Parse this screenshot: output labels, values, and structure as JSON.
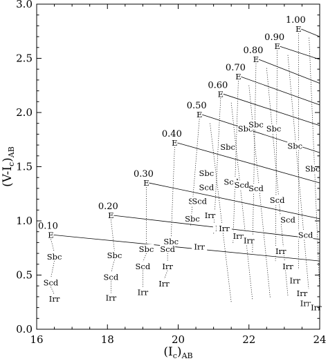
{
  "chart_data": {
    "type": "scatter",
    "title": "",
    "xlabel": "(I_c)_AB",
    "ylabel": "(V-I_c)_AB",
    "xlim": [
      16,
      24
    ],
    "ylim": [
      0.0,
      3.0
    ],
    "x_ticks": [
      "16",
      "18",
      "20",
      "22",
      "24"
    ],
    "y_ticks": [
      "0.0",
      "0.5",
      "1.0",
      "1.5",
      "2.0",
      "2.5",
      "3.0"
    ],
    "grid": false,
    "redshifts": [
      "0.10",
      "0.20",
      "0.30",
      "0.40",
      "0.50",
      "0.60",
      "0.70",
      "0.80",
      "0.90",
      "1.00"
    ],
    "e_tracks": [
      {
        "z": "0.10",
        "start": [
          16.4,
          0.87
        ],
        "end": [
          24.0,
          0.63
        ]
      },
      {
        "z": "0.20",
        "start": [
          18.1,
          1.05
        ],
        "end": [
          24.0,
          0.83
        ]
      },
      {
        "z": "0.30",
        "start": [
          19.1,
          1.35
        ],
        "end": [
          24.0,
          1.02
        ]
      },
      {
        "z": "0.40",
        "start": [
          19.9,
          1.72
        ],
        "end": [
          24.0,
          1.35
        ]
      },
      {
        "z": "0.50",
        "start": [
          20.6,
          1.98
        ],
        "end": [
          24.0,
          1.63
        ]
      },
      {
        "z": "0.60",
        "start": [
          21.2,
          2.17
        ],
        "end": [
          24.0,
          1.88
        ]
      },
      {
        "z": "0.70",
        "start": [
          21.7,
          2.33
        ],
        "end": [
          24.0,
          2.07
        ]
      },
      {
        "z": "0.80",
        "start": [
          22.2,
          2.49
        ],
        "end": [
          24.0,
          2.27
        ]
      },
      {
        "z": "0.90",
        "start": [
          22.8,
          2.61
        ],
        "end": [
          24.0,
          2.49
        ]
      },
      {
        "z": "1.00",
        "start": [
          23.4,
          2.77
        ],
        "end": [
          24.0,
          2.7
        ]
      }
    ],
    "morph_types": [
      {
        "x": 16.5,
        "y": 0.67,
        "label": "Sbc"
      },
      {
        "x": 16.4,
        "y": 0.43,
        "label": "Scd"
      },
      {
        "x": 16.5,
        "y": 0.28,
        "label": "Irr"
      },
      {
        "x": 18.2,
        "y": 0.68,
        "label": "Sbc"
      },
      {
        "x": 18.1,
        "y": 0.48,
        "label": "Scd"
      },
      {
        "x": 18.1,
        "y": 0.29,
        "label": "Irr"
      },
      {
        "x": 19.1,
        "y": 0.74,
        "label": "Sbc"
      },
      {
        "x": 19.0,
        "y": 0.58,
        "label": "Scd"
      },
      {
        "x": 19.0,
        "y": 0.34,
        "label": "Irr"
      },
      {
        "x": 19.8,
        "y": 0.81,
        "label": "Sbc"
      },
      {
        "x": 19.7,
        "y": 0.74,
        "label": "Scd"
      },
      {
        "x": 19.7,
        "y": 0.58,
        "label": "Irr"
      },
      {
        "x": 19.6,
        "y": 0.42,
        "label": "Irr"
      },
      {
        "x": 20.5,
        "y": 1.18,
        "label": "Sbc"
      },
      {
        "x": 20.4,
        "y": 1.02,
        "label": "Sbc"
      },
      {
        "x": 20.6,
        "y": 1.18,
        "label": "Scd"
      },
      {
        "x": 20.6,
        "y": 0.76,
        "label": "Irr"
      },
      {
        "x": 20.8,
        "y": 1.44,
        "label": "Sbc"
      },
      {
        "x": 20.8,
        "y": 1.31,
        "label": "Scd"
      },
      {
        "x": 20.9,
        "y": 1.05,
        "label": "Irr"
      },
      {
        "x": 21.2,
        "y": 0.93,
        "label": "Irr"
      },
      {
        "x": 21.3,
        "y": 0.93,
        "label": "Irr"
      },
      {
        "x": 21.4,
        "y": 1.68,
        "label": "Sbc"
      },
      {
        "x": 21.5,
        "y": 1.36,
        "label": "Scd"
      },
      {
        "x": 21.7,
        "y": 0.86,
        "label": "Irr"
      },
      {
        "x": 21.8,
        "y": 1.33,
        "label": "Scd"
      },
      {
        "x": 21.9,
        "y": 1.85,
        "label": "Sbc"
      },
      {
        "x": 22.0,
        "y": 0.82,
        "label": "Irr"
      },
      {
        "x": 22.2,
        "y": 1.89,
        "label": "Sbc"
      },
      {
        "x": 22.2,
        "y": 1.3,
        "label": "Scd"
      },
      {
        "x": 22.7,
        "y": 1.85,
        "label": "Sbc"
      },
      {
        "x": 22.8,
        "y": 1.19,
        "label": "Scd"
      },
      {
        "x": 22.9,
        "y": 0.72,
        "label": "Irr"
      },
      {
        "x": 23.1,
        "y": 1.01,
        "label": "Scd"
      },
      {
        "x": 23.1,
        "y": 0.58,
        "label": "Irr"
      },
      {
        "x": 23.3,
        "y": 1.69,
        "label": "Sbc"
      },
      {
        "x": 23.3,
        "y": 0.45,
        "label": "Irr"
      },
      {
        "x": 23.5,
        "y": 0.33,
        "label": "Irr"
      },
      {
        "x": 23.6,
        "y": 0.87,
        "label": "Scd"
      },
      {
        "x": 23.6,
        "y": 0.24,
        "label": "Irr"
      },
      {
        "x": 23.8,
        "y": 1.48,
        "label": "Sbc"
      },
      {
        "x": 23.9,
        "y": 0.2,
        "label": "Irr"
      }
    ]
  }
}
